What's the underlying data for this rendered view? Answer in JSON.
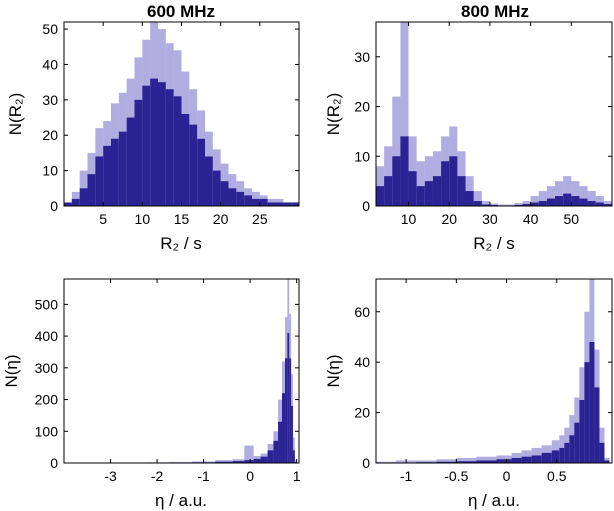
{
  "colors": {
    "bar_fill": "#2b2394",
    "bar_edge": "#6f69c8",
    "axis": "#000000",
    "background": "#ffffff"
  },
  "chart_data": [
    {
      "type": "bar",
      "title": "600 MHz",
      "xlabel": "R₂ / s",
      "ylabel": "N(R₂)",
      "xlim": [
        0,
        30
      ],
      "ylim": [
        0,
        52
      ],
      "xticks": [
        5,
        10,
        15,
        20,
        25
      ],
      "yticks": [
        0,
        10,
        20,
        30,
        40,
        50
      ],
      "grid": false,
      "x": [
        0.5,
        1.5,
        2.5,
        3.5,
        4.5,
        5.5,
        6.5,
        7.5,
        8.5,
        9.5,
        10.5,
        11.5,
        12.5,
        13.5,
        14.5,
        15.5,
        16.5,
        17.5,
        18.5,
        19.5,
        20.5,
        21.5,
        22.5,
        23.5,
        24.5,
        25.5,
        26.5,
        27.5,
        28.5,
        29.5
      ],
      "values": [
        1,
        2,
        5,
        9,
        14,
        17,
        19,
        21,
        25,
        30,
        34,
        36,
        35,
        33,
        31,
        26,
        23,
        19,
        14,
        10,
        7,
        5,
        4,
        3,
        2,
        2,
        1,
        1,
        1,
        1
      ],
      "peaks": [
        1,
        4,
        10,
        15,
        22,
        24,
        29,
        32,
        36,
        42,
        47,
        52,
        50,
        46,
        44,
        38,
        33,
        27,
        21,
        16,
        12,
        9,
        7,
        5,
        4,
        3,
        2,
        2,
        1,
        1
      ]
    },
    {
      "type": "bar",
      "title": "800 MHz",
      "xlabel": "R₂ / s",
      "ylabel": "N(R₂)",
      "xlim": [
        2,
        60
      ],
      "ylim": [
        0,
        37
      ],
      "xticks": [
        10,
        20,
        30,
        40,
        50
      ],
      "yticks": [
        0,
        10,
        20,
        30
      ],
      "grid": false,
      "x": [
        3,
        5,
        7,
        9,
        11,
        13,
        15,
        17,
        19,
        21,
        23,
        25,
        27,
        29,
        31,
        33,
        35,
        37,
        39,
        41,
        43,
        45,
        47,
        49,
        51,
        53,
        55,
        57,
        59
      ],
      "values": [
        4,
        6,
        10,
        14,
        7,
        4,
        5,
        6,
        9,
        10,
        6,
        3,
        1,
        0.3,
        0.2,
        0.1,
        0.1,
        0.2,
        0.4,
        0.7,
        1,
        1.5,
        2,
        2.5,
        2,
        1.5,
        1,
        0.7,
        0.4
      ],
      "peaks": [
        8,
        12,
        22,
        37,
        14,
        9,
        10,
        11,
        14,
        16,
        11,
        6,
        3,
        1,
        0.5,
        0.3,
        0.3,
        0.6,
        1,
        2,
        3,
        4,
        5,
        6,
        5,
        4,
        3,
        2,
        1
      ]
    },
    {
      "type": "bar",
      "title": "",
      "xlabel": "η / a.u.",
      "ylabel": "N(η)",
      "xlim": [
        -4,
        1.05
      ],
      "ylim": [
        0,
        580
      ],
      "xticks": [
        -3,
        -2,
        -1,
        0,
        1
      ],
      "yticks": [
        0,
        100,
        200,
        300,
        400,
        500
      ],
      "grid": false,
      "x": [
        -3.5,
        -3.0,
        -2.5,
        -2.0,
        -1.5,
        -1.0,
        -0.5,
        -0.25,
        0.0,
        0.15,
        0.3,
        0.45,
        0.55,
        0.65,
        0.72,
        0.78,
        0.82,
        0.86,
        0.9,
        0.94,
        0.98
      ],
      "values": [
        0,
        0,
        0,
        1,
        1,
        2,
        4,
        6,
        9,
        13,
        20,
        40,
        70,
        130,
        220,
        330,
        410,
        330,
        180,
        40,
        3
      ],
      "peaks": [
        1,
        1,
        1,
        2,
        3,
        5,
        9,
        12,
        55,
        22,
        30,
        60,
        100,
        200,
        320,
        460,
        580,
        470,
        280,
        80,
        10
      ]
    },
    {
      "type": "bar",
      "title": "",
      "xlabel": "η / a.u.",
      "ylabel": "N(η)",
      "xlim": [
        -1.3,
        1.05
      ],
      "ylim": [
        0,
        73
      ],
      "xticks": [
        -1,
        -0.5,
        0,
        0.5
      ],
      "yticks": [
        0,
        20,
        40,
        60
      ],
      "grid": false,
      "x": [
        -1.2,
        -1.0,
        -0.8,
        -0.6,
        -0.4,
        -0.2,
        0.0,
        0.1,
        0.2,
        0.3,
        0.4,
        0.5,
        0.55,
        0.6,
        0.65,
        0.7,
        0.75,
        0.8,
        0.85,
        0.9,
        0.95,
        1.0
      ],
      "values": [
        0,
        0.2,
        0.3,
        0.5,
        0.7,
        1,
        1.5,
        2,
        2.5,
        3,
        4,
        5,
        6,
        8,
        11,
        16,
        25,
        40,
        48,
        30,
        8,
        1
      ],
      "peaks": [
        0.5,
        1,
        1,
        1.5,
        2,
        2.5,
        3,
        4,
        5,
        6,
        7,
        9,
        11,
        14,
        19,
        26,
        38,
        60,
        73,
        45,
        14,
        2
      ]
    }
  ]
}
